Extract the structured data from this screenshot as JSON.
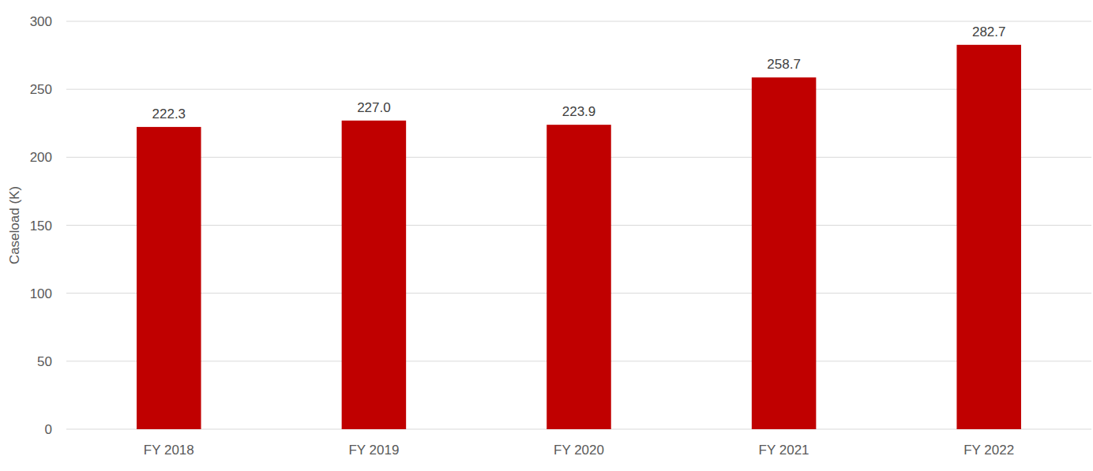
{
  "chart_data": {
    "type": "bar",
    "y_label": "Caseload (K)",
    "categories": [
      "FY 2018",
      "FY 2019",
      "FY 2020",
      "FY 2021",
      "FY 2022"
    ],
    "values": [
      222.3,
      227.0,
      223.9,
      258.7,
      282.7
    ],
    "value_labels": [
      "222.3",
      "227.0",
      "223.9",
      "258.7",
      "282.7"
    ],
    "color": "#c00000",
    "ylim": [
      0,
      300
    ],
    "yticks": [
      0,
      50,
      100,
      150,
      200,
      250,
      300
    ],
    "grid": true,
    "data_labels": true
  }
}
